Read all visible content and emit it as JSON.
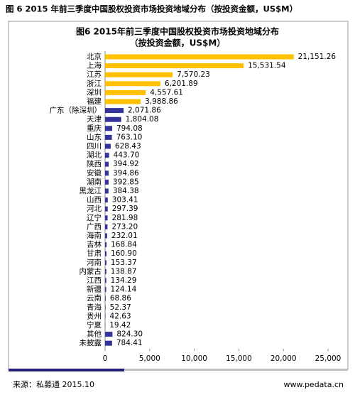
{
  "header": {
    "title": "图 6 2015 年前三季度中国股权投资市场投资地域分布（按投资金额，US$M）"
  },
  "chart_data": {
    "type": "hbar",
    "title": "图6 2015年前三季度中国股权投资市场投资地域分布",
    "subtitle": "（按投资金额，US$M）",
    "categories": [
      "北京",
      "上海",
      "江苏",
      "浙江",
      "深圳",
      "福建",
      "广东（除深圳）",
      "天津",
      "重庆",
      "山东",
      "四川",
      "湖北",
      "陕西",
      "安徽",
      "湖南",
      "黑龙江",
      "山西",
      "河北",
      "辽宁",
      "广西",
      "海南",
      "吉林",
      "甘肃",
      "河南",
      "内蒙古",
      "江西",
      "新疆",
      "云南",
      "青海",
      "贵州",
      "宁夏",
      "其他",
      "未披露"
    ],
    "values": [
      21151.26,
      15531.54,
      7570.23,
      6201.89,
      4557.61,
      3988.86,
      2071.86,
      1804.08,
      794.08,
      763.1,
      628.43,
      443.7,
      394.92,
      394.86,
      392.85,
      384.38,
      303.41,
      297.39,
      281.98,
      273.2,
      232.01,
      168.84,
      160.9,
      153.37,
      138.87,
      134.29,
      124.14,
      68.86,
      52.37,
      42.63,
      19.42,
      824.3,
      784.41
    ],
    "value_labels": [
      "21,151.26",
      "15,531.54",
      "7,570.23",
      "6,201.89",
      "4,557.61",
      "3,988.86",
      "2,071.86",
      "1,804.08",
      "794.08",
      "763.10",
      "628.43",
      "443.70",
      "394.92",
      "394.86",
      "392.85",
      "384.38",
      "303.41",
      "297.39",
      "281.98",
      "273.20",
      "232.01",
      "168.84",
      "160.90",
      "153.37",
      "138.87",
      "134.29",
      "124.14",
      "68.86",
      "52.37",
      "42.63",
      "19.42",
      "824.30",
      "784.41"
    ],
    "colors": [
      "#ffc000",
      "#ffc000",
      "#ffc000",
      "#ffc000",
      "#ffc000",
      "#ffc000",
      "#333399",
      "#333399",
      "#333399",
      "#333399",
      "#333399",
      "#333399",
      "#333399",
      "#333399",
      "#333399",
      "#333399",
      "#333399",
      "#333399",
      "#333399",
      "#333399",
      "#333399",
      "#333399",
      "#333399",
      "#333399",
      "#333399",
      "#333399",
      "#333399",
      "#333399",
      "#333399",
      "#333399",
      "#333399",
      "#333399",
      "#333399"
    ],
    "xlim": [
      0,
      25000
    ],
    "xticks": [
      0,
      {
        "value": 5000,
        "label": "5,000"
      },
      {
        "value": 10000,
        "label": "10,000"
      },
      {
        "value": 15000,
        "label": "15,000"
      },
      {
        "value": 20000,
        "label": "20,000"
      },
      {
        "value": 25000,
        "label": "25,000"
      }
    ]
  },
  "footer": {
    "source": "来源：私募通 2015.10",
    "url": "www.pedata.cn"
  }
}
